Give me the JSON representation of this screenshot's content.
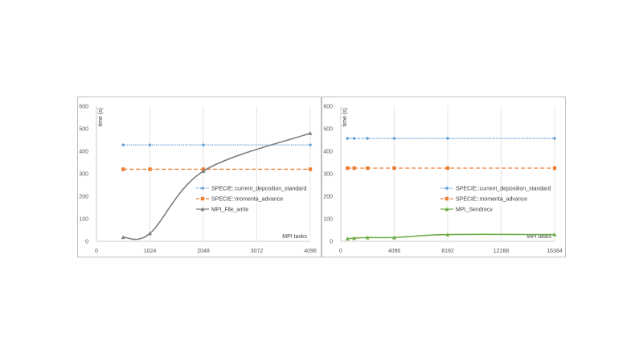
{
  "chart_data": [
    {
      "type": "line",
      "ylabel": "time (s)",
      "xlabel": "MPI tasks",
      "xlim": [
        0,
        4096
      ],
      "ylim": [
        0,
        600
      ],
      "xticks": [
        0,
        1024,
        2048,
        3072,
        4096
      ],
      "yticks": [
        0,
        100,
        200,
        300,
        400,
        500,
        600
      ],
      "legend_position": "center-right",
      "grid": "vertical",
      "series": [
        {
          "name": "SPECIE::current_deposition_standard",
          "color": "#5b9bd5",
          "style": "dotted",
          "marker": "diamond",
          "x": [
            512,
            1024,
            2048,
            4096
          ],
          "y": [
            428,
            428,
            428,
            428
          ]
        },
        {
          "name": "SPECIE::momenta_advance",
          "color": "#ed7d31",
          "style": "dashed",
          "marker": "square",
          "x": [
            512,
            1024,
            2048,
            4096
          ],
          "y": [
            320,
            320,
            320,
            320
          ]
        },
        {
          "name": "MPI_File_write",
          "color": "#7f7f7f",
          "style": "solid",
          "marker": "triangle",
          "x": [
            512,
            1024,
            2048,
            4096
          ],
          "y": [
            18,
            35,
            312,
            480
          ]
        }
      ]
    },
    {
      "type": "line",
      "ylabel": "time (s)",
      "xlabel": "MPI tasks",
      "xlim": [
        0,
        16384
      ],
      "ylim": [
        0,
        600
      ],
      "xticks": [
        0,
        4096,
        8192,
        12288,
        16384
      ],
      "yticks": [
        0,
        100,
        200,
        300,
        400,
        500,
        600
      ],
      "legend_position": "center-right",
      "grid": "vertical",
      "series": [
        {
          "name": "SPECIE::current_deposition_standard",
          "color": "#5b9bd5",
          "style": "dotted",
          "marker": "diamond",
          "x": [
            512,
            1024,
            2048,
            4096,
            8192,
            16384
          ],
          "y": [
            457,
            457,
            457,
            457,
            457,
            457
          ]
        },
        {
          "name": "SPECIE::momenta_advance",
          "color": "#ed7d31",
          "style": "dashed",
          "marker": "square",
          "x": [
            512,
            1024,
            2048,
            4096,
            8192,
            16384
          ],
          "y": [
            325,
            325,
            325,
            325,
            325,
            325
          ]
        },
        {
          "name": "MPI_Sendrecv",
          "color": "#70ad47",
          "style": "solid",
          "marker": "triangle",
          "x": [
            512,
            1024,
            2048,
            4096,
            8192,
            16384
          ],
          "y": [
            12,
            14,
            17,
            17,
            30,
            30
          ]
        }
      ]
    }
  ]
}
